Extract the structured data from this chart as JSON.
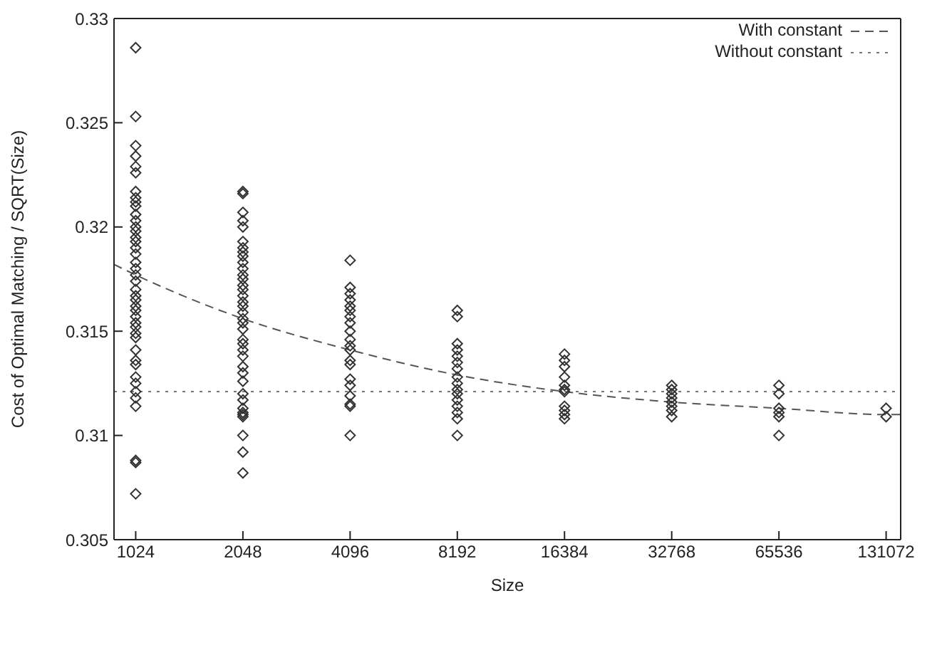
{
  "chart_data": {
    "type": "scatter",
    "xlabel": "Size",
    "ylabel": "Cost of Optimal Matching / SQRT(Size)",
    "log": "x",
    "xlim": [
      890,
      144000
    ],
    "xticks": [
      1024,
      2048,
      4096,
      8192,
      16384,
      32768,
      65536,
      131072
    ],
    "ylim": [
      0.305,
      0.33
    ],
    "yticks": [
      0.305,
      0.31,
      0.315,
      0.32,
      0.325,
      0.33
    ],
    "legend": "top right",
    "series": [
      {
        "marker": "diamond",
        "color": "#333333",
        "x": [
          1024,
          1024,
          1024,
          1024,
          1024,
          1024,
          1024,
          1024,
          1024,
          1024,
          1024,
          1024,
          1024,
          1024,
          1024,
          1024,
          1024,
          1024,
          1024,
          1024,
          1024,
          1024,
          1024,
          1024,
          1024,
          1024,
          1024,
          1024,
          1024,
          1024,
          1024,
          1024,
          1024,
          1024,
          1024,
          1024,
          1024,
          1024,
          1024,
          1024,
          1024,
          1024,
          1024,
          2048,
          2048,
          2048,
          2048,
          2048,
          2048,
          2048,
          2048,
          2048,
          2048,
          2048,
          2048,
          2048,
          2048,
          2048,
          2048,
          2048,
          2048,
          2048,
          2048,
          2048,
          2048,
          2048,
          2048,
          2048,
          2048,
          2048,
          2048,
          2048,
          2048,
          2048,
          2048,
          2048,
          2048,
          2048,
          2048,
          2048,
          2048,
          4096,
          4096,
          4096,
          4096,
          4096,
          4096,
          4096,
          4096,
          4096,
          4096,
          4096,
          4096,
          4096,
          4096,
          4096,
          4096,
          4096,
          4096,
          4096,
          4096,
          8192,
          8192,
          8192,
          8192,
          8192,
          8192,
          8192,
          8192,
          8192,
          8192,
          8192,
          8192,
          8192,
          8192,
          8192,
          8192,
          16384,
          16384,
          16384,
          16384,
          16384,
          16384,
          16384,
          16384,
          16384,
          16384,
          16384,
          32768,
          32768,
          32768,
          32768,
          32768,
          32768,
          32768,
          32768,
          65536,
          65536,
          65536,
          65536,
          65536,
          65536,
          131072,
          131072
        ],
        "values": [
          0.3286,
          0.3253,
          0.3239,
          0.3234,
          0.3229,
          0.3226,
          0.3217,
          0.3214,
          0.3212,
          0.321,
          0.3206,
          0.3203,
          0.32,
          0.3198,
          0.3195,
          0.3193,
          0.319,
          0.3187,
          0.3183,
          0.318,
          0.3177,
          0.3174,
          0.317,
          0.3167,
          0.3165,
          0.3162,
          0.316,
          0.3157,
          0.3154,
          0.3152,
          0.3149,
          0.3147,
          0.3141,
          0.3136,
          0.3134,
          0.3128,
          0.3125,
          0.3121,
          0.3118,
          0.3114,
          0.3088,
          0.3087,
          0.3072,
          0.3217,
          0.3216,
          0.3207,
          0.3203,
          0.32,
          0.3193,
          0.319,
          0.3188,
          0.3186,
          0.3183,
          0.318,
          0.3177,
          0.3175,
          0.3172,
          0.317,
          0.3167,
          0.3164,
          0.3162,
          0.3159,
          0.3156,
          0.3154,
          0.3151,
          0.3146,
          0.3144,
          0.3141,
          0.3138,
          0.3133,
          0.313,
          0.3126,
          0.312,
          0.3117,
          0.3113,
          0.3111,
          0.311,
          0.3109,
          0.31,
          0.3092,
          0.3082,
          0.3184,
          0.3171,
          0.3168,
          0.3165,
          0.3162,
          0.316,
          0.3157,
          0.3154,
          0.315,
          0.3146,
          0.3143,
          0.3141,
          0.3136,
          0.3134,
          0.3127,
          0.3124,
          0.3119,
          0.3115,
          0.3114,
          0.31,
          0.316,
          0.3157,
          0.3144,
          0.3141,
          0.3138,
          0.3135,
          0.3132,
          0.3128,
          0.3125,
          0.3122,
          0.312,
          0.3117,
          0.3114,
          0.3111,
          0.3108,
          0.31,
          0.3139,
          0.3136,
          0.3133,
          0.3128,
          0.3124,
          0.3122,
          0.3121,
          0.3114,
          0.3112,
          0.311,
          0.3108,
          0.3124,
          0.3122,
          0.312,
          0.3118,
          0.3116,
          0.3114,
          0.3112,
          0.3109,
          0.3124,
          0.312,
          0.3113,
          0.3111,
          0.3109,
          0.31,
          0.3113,
          0.3109
        ]
      },
      {
        "type": "line",
        "name": "With constant",
        "color": "#555555",
        "line_style": "dashed",
        "marker": "none",
        "x": [
          890,
          1024,
          2048,
          4096,
          8192,
          16384,
          32768,
          65536,
          131072,
          144000
        ],
        "values": [
          0.3182,
          0.3177,
          0.3156,
          0.3141,
          0.3129,
          0.3121,
          0.3116,
          0.3113,
          0.311,
          0.311
        ]
      },
      {
        "type": "line",
        "name": "Without constant",
        "color": "#777777",
        "line_style": "dotted",
        "marker": "none",
        "x": [
          890,
          144000
        ],
        "values": [
          0.3121,
          0.3121
        ]
      }
    ]
  }
}
